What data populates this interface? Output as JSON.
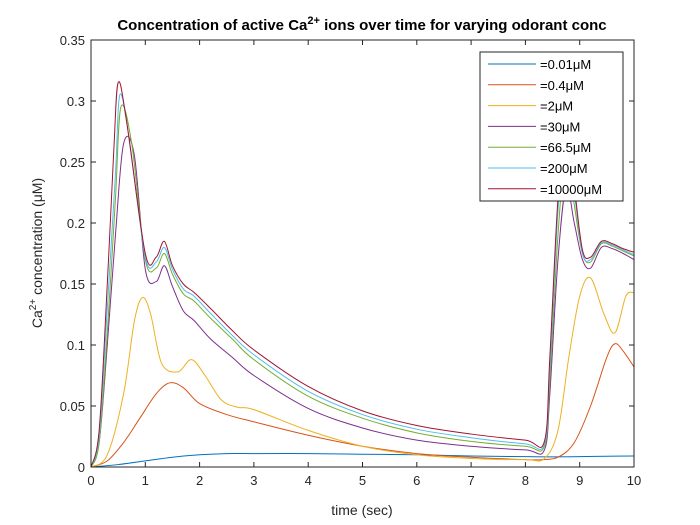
{
  "chart_data": {
    "type": "line",
    "title_main": "Concentration of active Ca",
    "title_sup": "2+",
    "title_rest": " ions over time for varying odorant conc",
    "xlabel": "time (sec)",
    "ylabel_main": "Ca",
    "ylabel_sup": "2+",
    "ylabel_rest": " concentration (μM)",
    "xlim": [
      0,
      10
    ],
    "ylim": [
      0,
      0.35
    ],
    "xticks": [
      0,
      1,
      2,
      3,
      4,
      5,
      6,
      7,
      8,
      9,
      10
    ],
    "xtick_labels": [
      "0",
      "1",
      "2",
      "3",
      "4",
      "5",
      "6",
      "7",
      "8",
      "9",
      "10"
    ],
    "yticks": [
      0,
      0.05,
      0.1,
      0.15,
      0.2,
      0.25,
      0.3,
      0.35
    ],
    "ytick_labels": [
      "0",
      "0.05",
      "0.1",
      "0.15",
      "0.2",
      "0.25",
      "0.3",
      "0.35"
    ],
    "grid": false,
    "legend_position": "top-right",
    "series": [
      {
        "name": "=0.01μM",
        "color": "#0072BD",
        "x": [
          0,
          0.5,
          1,
          1.5,
          2,
          2.5,
          3,
          4,
          5,
          6,
          7,
          8,
          8.5,
          9,
          9.5,
          10
        ],
        "y": [
          0,
          0.002,
          0.005,
          0.008,
          0.01,
          0.011,
          0.011,
          0.011,
          0.0105,
          0.01,
          0.009,
          0.0085,
          0.0083,
          0.0085,
          0.0088,
          0.009
        ]
      },
      {
        "name": "=0.4μM",
        "color": "#D95319",
        "x": [
          0,
          0.3,
          0.6,
          0.9,
          1.2,
          1.45,
          1.7,
          2.0,
          2.5,
          3.0,
          4.0,
          5.0,
          6.0,
          7.0,
          8.0,
          8.3,
          8.6,
          8.9,
          9.2,
          9.5,
          9.65,
          9.8,
          10.0
        ],
        "y": [
          0,
          0.005,
          0.02,
          0.04,
          0.06,
          0.069,
          0.065,
          0.052,
          0.043,
          0.037,
          0.026,
          0.017,
          0.011,
          0.008,
          0.006,
          0.006,
          0.008,
          0.02,
          0.05,
          0.09,
          0.101,
          0.095,
          0.082
        ]
      },
      {
        "name": "=2μM",
        "color": "#EDB120",
        "x": [
          0,
          0.3,
          0.6,
          0.8,
          0.95,
          1.1,
          1.3,
          1.6,
          1.85,
          2.1,
          2.4,
          2.7,
          3.0,
          4.0,
          5.0,
          6.0,
          7.0,
          8.0,
          8.35,
          8.6,
          8.8,
          9.0,
          9.2,
          9.45,
          9.65,
          9.85,
          10.0
        ],
        "y": [
          0,
          0.01,
          0.06,
          0.12,
          0.139,
          0.125,
          0.085,
          0.078,
          0.088,
          0.075,
          0.055,
          0.049,
          0.047,
          0.03,
          0.017,
          0.01,
          0.007,
          0.006,
          0.007,
          0.03,
          0.09,
          0.14,
          0.155,
          0.125,
          0.11,
          0.14,
          0.143
        ]
      },
      {
        "name": "=30μM",
        "color": "#7E2F8E",
        "x": [
          0,
          0.15,
          0.3,
          0.45,
          0.6,
          0.8,
          1.0,
          1.2,
          1.35,
          1.5,
          1.7,
          1.9,
          2.2,
          2.6,
          3.0,
          4.0,
          5.0,
          6.0,
          7.0,
          8.0,
          8.35,
          8.45,
          8.6,
          8.75,
          8.9,
          9.05,
          9.2,
          9.4,
          9.6,
          9.8,
          10.0
        ],
        "y": [
          0,
          0.02,
          0.1,
          0.19,
          0.265,
          0.255,
          0.162,
          0.152,
          0.165,
          0.148,
          0.128,
          0.12,
          0.105,
          0.09,
          0.075,
          0.048,
          0.032,
          0.022,
          0.017,
          0.014,
          0.014,
          0.06,
          0.17,
          0.23,
          0.2,
          0.17,
          0.163,
          0.18,
          0.179,
          0.175,
          0.17
        ]
      },
      {
        "name": "=66.5μM",
        "color": "#77AC30",
        "x": [
          0,
          0.15,
          0.3,
          0.45,
          0.55,
          0.75,
          1.0,
          1.2,
          1.35,
          1.5,
          1.7,
          1.9,
          2.2,
          2.6,
          3.0,
          4.0,
          5.0,
          6.0,
          7.0,
          8.0,
          8.35,
          8.45,
          8.6,
          8.75,
          8.9,
          9.05,
          9.2,
          9.4,
          9.6,
          9.8,
          10.0
        ],
        "y": [
          0,
          0.02,
          0.11,
          0.22,
          0.295,
          0.265,
          0.17,
          0.163,
          0.175,
          0.158,
          0.142,
          0.136,
          0.122,
          0.105,
          0.088,
          0.058,
          0.04,
          0.028,
          0.021,
          0.017,
          0.017,
          0.07,
          0.19,
          0.26,
          0.215,
          0.175,
          0.168,
          0.183,
          0.181,
          0.177,
          0.173
        ]
      },
      {
        "name": "=200μM",
        "color": "#4DBEEE",
        "x": [
          0,
          0.15,
          0.3,
          0.45,
          0.53,
          0.7,
          1.0,
          1.2,
          1.35,
          1.5,
          1.7,
          1.9,
          2.2,
          2.6,
          3.0,
          4.0,
          5.0,
          6.0,
          7.0,
          8.0,
          8.35,
          8.45,
          8.6,
          8.75,
          8.9,
          9.05,
          9.2,
          9.4,
          9.6,
          9.8,
          10.0
        ],
        "y": [
          0,
          0.025,
          0.13,
          0.24,
          0.305,
          0.27,
          0.172,
          0.168,
          0.18,
          0.162,
          0.146,
          0.14,
          0.126,
          0.108,
          0.092,
          0.062,
          0.043,
          0.031,
          0.024,
          0.019,
          0.019,
          0.08,
          0.21,
          0.27,
          0.225,
          0.175,
          0.17,
          0.184,
          0.182,
          0.178,
          0.174
        ]
      },
      {
        "name": "=10000μM",
        "color": "#A2142F",
        "x": [
          0,
          0.15,
          0.3,
          0.42,
          0.5,
          0.65,
          1.0,
          1.2,
          1.35,
          1.5,
          1.7,
          1.9,
          2.2,
          2.6,
          3.0,
          4.0,
          5.0,
          6.0,
          7.0,
          8.0,
          8.35,
          8.45,
          8.6,
          8.75,
          8.9,
          9.05,
          9.2,
          9.4,
          9.6,
          9.8,
          10.0
        ],
        "y": [
          0,
          0.03,
          0.15,
          0.26,
          0.315,
          0.285,
          0.175,
          0.172,
          0.185,
          0.165,
          0.15,
          0.143,
          0.13,
          0.112,
          0.096,
          0.066,
          0.046,
          0.034,
          0.027,
          0.022,
          0.021,
          0.09,
          0.22,
          0.28,
          0.23,
          0.178,
          0.172,
          0.185,
          0.183,
          0.179,
          0.176
        ]
      }
    ]
  }
}
